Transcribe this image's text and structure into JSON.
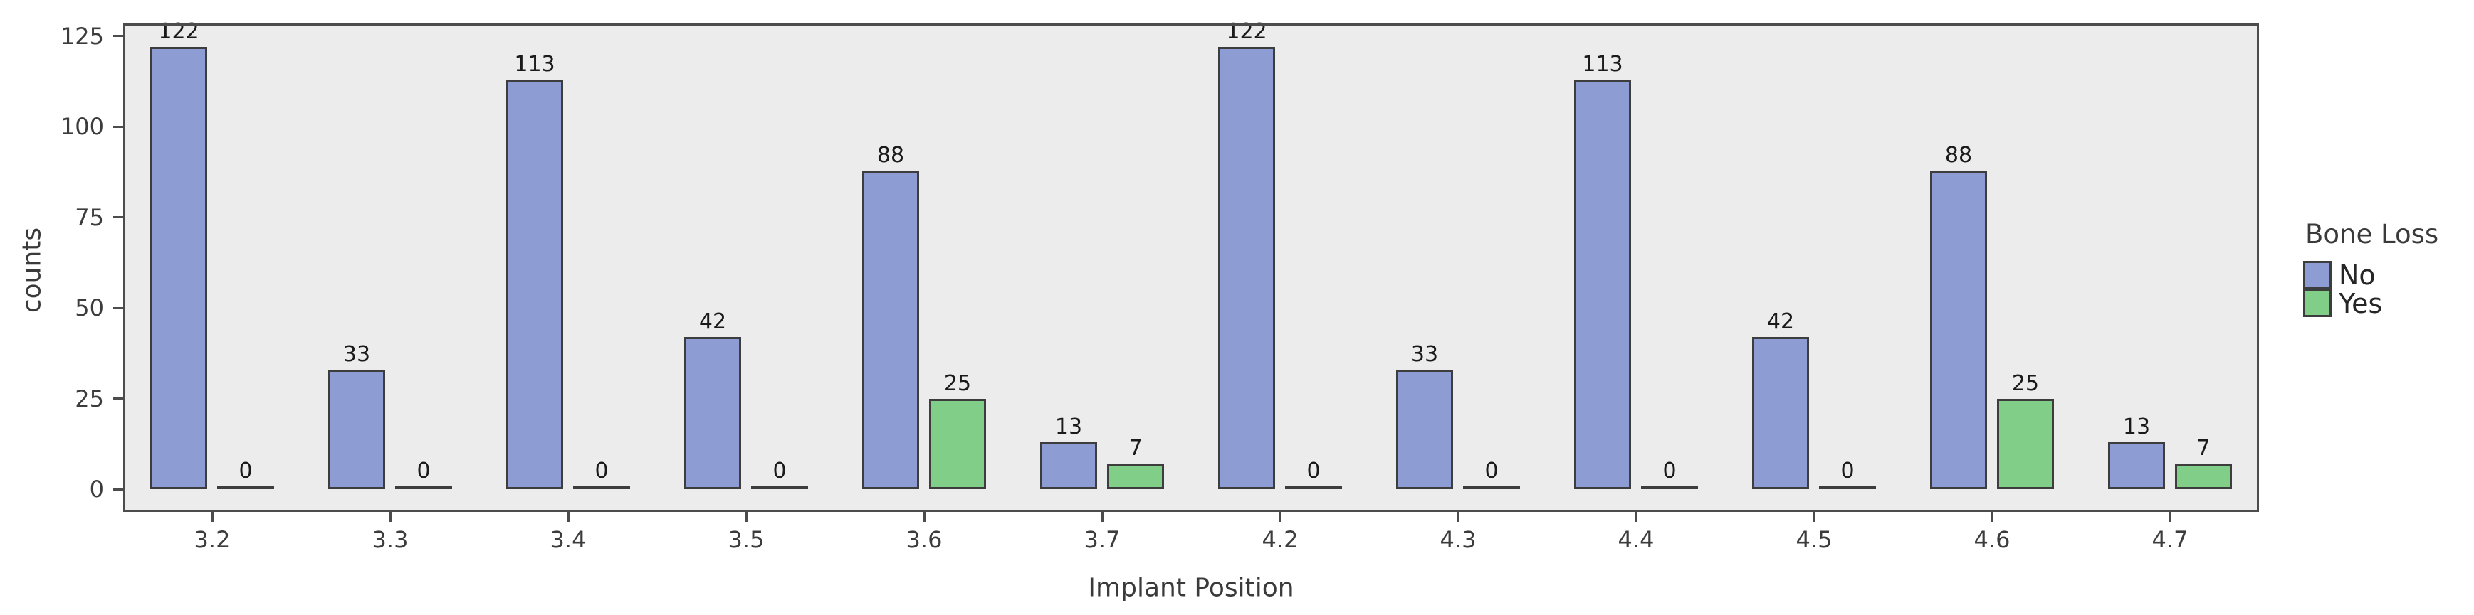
{
  "chart_data": {
    "type": "bar",
    "title": "",
    "xlabel": "Implant Position",
    "ylabel": "counts",
    "legend_title": "Bone Loss",
    "legend_position": "right-center",
    "grid": false,
    "categories": [
      "3.2",
      "3.3",
      "3.4",
      "3.5",
      "3.6",
      "3.7",
      "4.2",
      "4.3",
      "4.4",
      "4.5",
      "4.6",
      "4.7"
    ],
    "series": [
      {
        "name": "No",
        "color": "#8d9dd3",
        "values": [
          122,
          33,
          113,
          42,
          88,
          13,
          122,
          33,
          113,
          42,
          88,
          13
        ]
      },
      {
        "name": "Yes",
        "color": "#80ce87",
        "values": [
          0,
          0,
          0,
          0,
          25,
          7,
          0,
          0,
          0,
          0,
          25,
          7
        ]
      }
    ],
    "bar_value_labels": [
      [
        "122",
        "0"
      ],
      [
        "33",
        "0"
      ],
      [
        "113",
        "0"
      ],
      [
        "42",
        "0"
      ],
      [
        "88",
        "25"
      ],
      [
        "13",
        "7"
      ],
      [
        "122",
        "0"
      ],
      [
        "33",
        "0"
      ],
      [
        "113",
        "0"
      ],
      [
        "42",
        "0"
      ],
      [
        "88",
        "25"
      ],
      [
        "13",
        "7"
      ]
    ],
    "yticks": [
      0,
      25,
      50,
      75,
      100,
      125
    ],
    "ylim": [
      -6.7,
      128.5
    ],
    "panel_background": "#ececec",
    "figure_background": "#ffffff",
    "spine_color": "#4c4c4c",
    "bar_edge_color": "#3d3d3d",
    "text_color": "#3a3a3a"
  }
}
